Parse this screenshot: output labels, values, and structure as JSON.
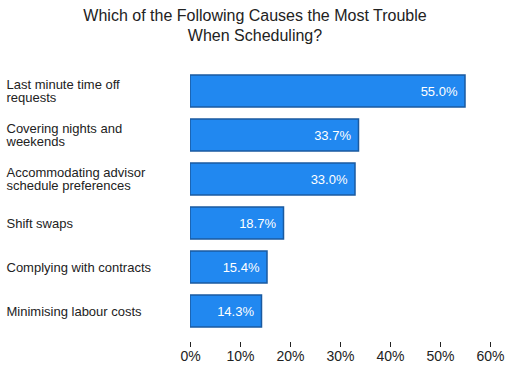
{
  "chart_data": {
    "type": "bar",
    "orientation": "horizontal",
    "title": "Which of the Following Causes the Most Trouble When Scheduling?",
    "categories": [
      "Last minute time off requests",
      "Covering nights and weekends",
      "Accommodating advisor schedule preferences",
      "Shift swaps",
      "Complying with contracts",
      "Minimising labour costs"
    ],
    "values": [
      55.0,
      33.7,
      33.0,
      18.7,
      15.4,
      14.3
    ],
    "value_labels": [
      "55.0%",
      "33.7%",
      "33.0%",
      "18.7%",
      "15.4%",
      "14.3%"
    ],
    "color": "#2188f0",
    "data_labels": true,
    "grid": false,
    "xlim": [
      0,
      60
    ],
    "xticks": [
      {
        "value": 0,
        "label": "0%"
      },
      {
        "value": 10,
        "label": "10%"
      },
      {
        "value": 20,
        "label": "20%"
      },
      {
        "value": 30,
        "label": "30%"
      },
      {
        "value": 40,
        "label": "40%"
      },
      {
        "value": 50,
        "label": "50%"
      },
      {
        "value": 60,
        "label": "60%"
      }
    ]
  }
}
